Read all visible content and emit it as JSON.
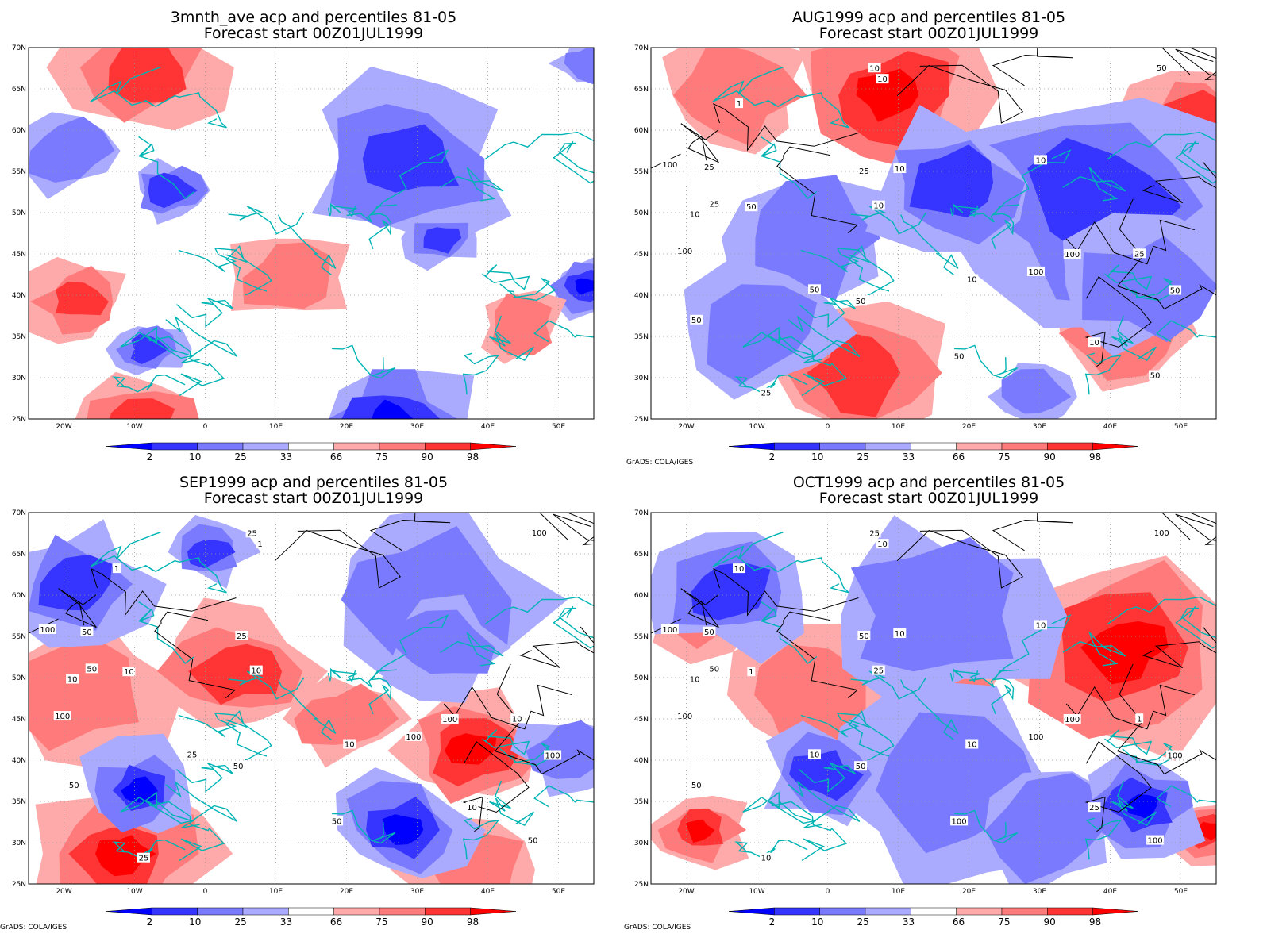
{
  "panels": [
    {
      "id": "p1",
      "title1": "3mnth_ave acp and percentiles 81-05",
      "title2": "Forecast start 00Z01JUL1999",
      "credit": ""
    },
    {
      "id": "p2",
      "title1": "AUG1999 acp and percentiles 81-05",
      "title2": "Forecast start 00Z01JUL1999",
      "credit": "GrADS: COLA/IGES"
    },
    {
      "id": "p3",
      "title1": "SEP1999 acp and percentiles 81-05",
      "title2": "Forecast start 00Z01JUL1999",
      "credit": "GrADS: COLA/IGES"
    },
    {
      "id": "p4",
      "title1": "OCT1999 acp and percentiles 81-05",
      "title2": "Forecast start 00Z01JUL1999",
      "credit": "GrADS: COLA/IGES"
    }
  ],
  "lat_labels": [
    "70N",
    "65N",
    "60N",
    "55N",
    "50N",
    "45N",
    "40N",
    "35N",
    "30N",
    "25N"
  ],
  "lon_labels": [
    "20W",
    "10W",
    "0",
    "10E",
    "20E",
    "30E",
    "40E",
    "50E"
  ],
  "colorbar": {
    "labels": [
      "2",
      "10",
      "25",
      "33",
      "66",
      "75",
      "90",
      "98"
    ],
    "colors": [
      "#0000ff",
      "#3535ff",
      "#7a7aff",
      "#aaaaff",
      "#ffffff",
      "#ffaaaa",
      "#ff7a7a",
      "#ff3535",
      "#ff0000"
    ]
  },
  "contour_labels": {
    "p2": [
      "100",
      "100",
      "100",
      "100",
      "50",
      "50",
      "50",
      "50",
      "50",
      "50",
      "25",
      "25",
      "25",
      "10",
      "10",
      "10",
      "10",
      "10",
      "1",
      "10",
      "50",
      "25",
      "25",
      "50",
      "10",
      "10"
    ],
    "p3": [
      "100",
      "100",
      "100",
      "100",
      "100",
      "100",
      "50",
      "50",
      "50",
      "50",
      "50",
      "50",
      "25",
      "25",
      "10",
      "10",
      "10",
      "10",
      "1",
      "1",
      "25",
      "25",
      "10",
      "10"
    ],
    "p4": [
      "100",
      "100",
      "100",
      "100",
      "100",
      "100",
      "100",
      "100",
      "50",
      "50",
      "50",
      "50",
      "50",
      "25",
      "25",
      "25",
      "10",
      "10",
      "10",
      "10",
      "10",
      "10",
      "1",
      "1",
      "10",
      "10"
    ]
  }
}
